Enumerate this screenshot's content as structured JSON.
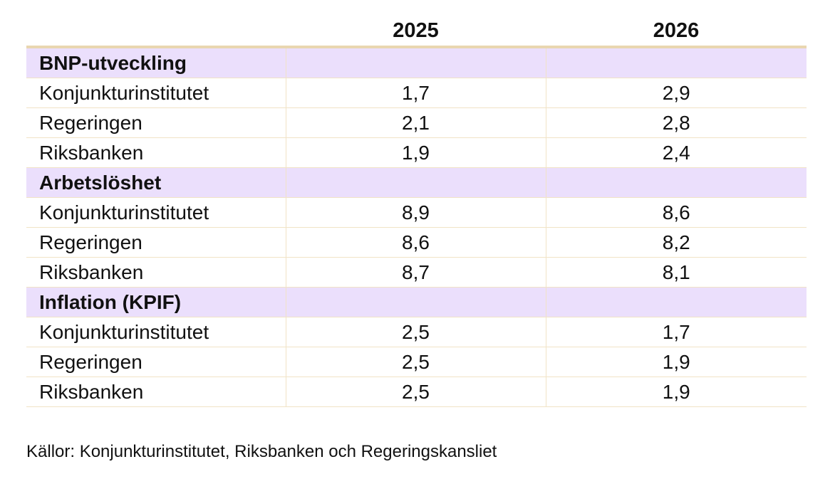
{
  "table": {
    "header": [
      "",
      "2025",
      "2026"
    ],
    "sections": [
      {
        "title": "BNP-utveckling",
        "rows": [
          {
            "source": "Konjunkturinstitutet",
            "y2025": "1,7",
            "y2026": "2,9"
          },
          {
            "source": "Regeringen",
            "y2025": "2,1",
            "y2026": "2,8"
          },
          {
            "source": "Riksbanken",
            "y2025": "1,9",
            "y2026": "2,4"
          }
        ]
      },
      {
        "title": "Arbetslöshet",
        "rows": [
          {
            "source": "Konjunkturinstitutet",
            "y2025": "8,9",
            "y2026": "8,6"
          },
          {
            "source": "Regeringen",
            "y2025": "8,6",
            "y2026": "8,2"
          },
          {
            "source": "Riksbanken",
            "y2025": "8,7",
            "y2026": "8,1"
          }
        ]
      },
      {
        "title": "Inflation (KPIF)",
        "rows": [
          {
            "source": "Konjunkturinstitutet",
            "y2025": "2,5",
            "y2026": "1,7"
          },
          {
            "source": "Regeringen",
            "y2025": "2,5",
            "y2026": "1,9"
          },
          {
            "source": "Riksbanken",
            "y2025": "2,5",
            "y2026": "1,9"
          }
        ]
      }
    ]
  },
  "footnote": "Källor: Konjunkturinstitutet, Riksbanken och Regeringskansliet",
  "colors": {
    "section_background": "#ebdffc",
    "header_rule": "#e9d6b0",
    "grid_line": "#f1e3c6"
  }
}
